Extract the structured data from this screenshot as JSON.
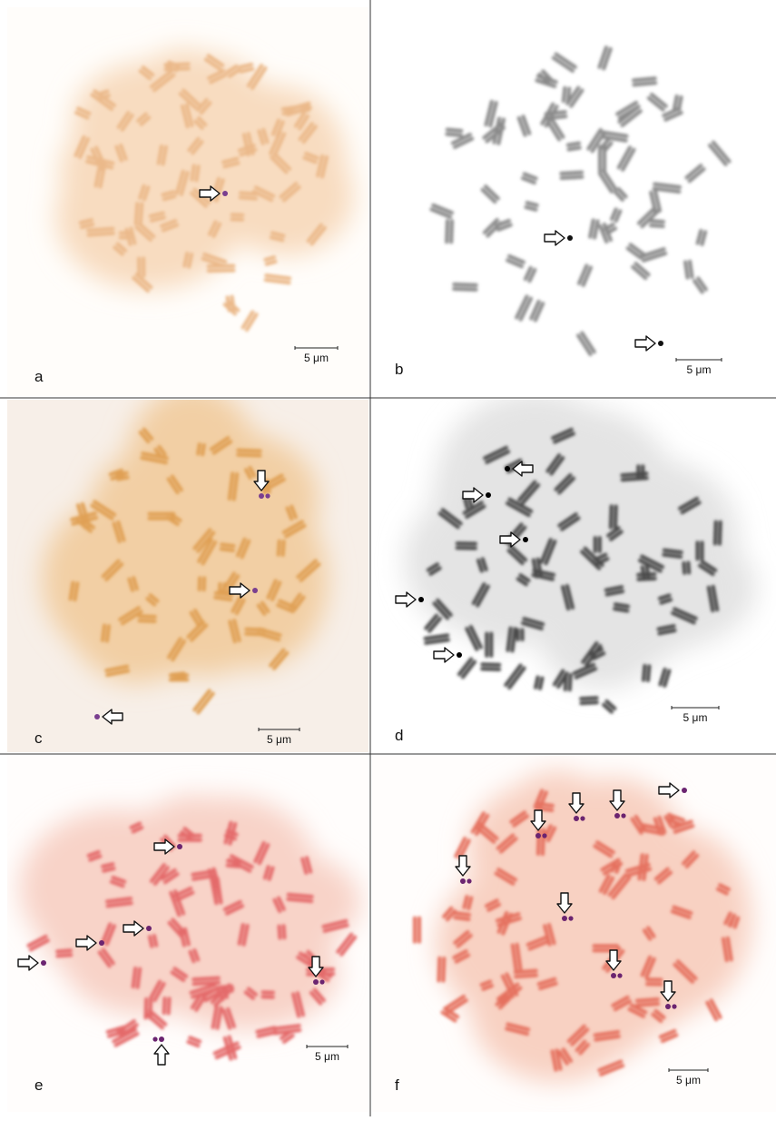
{
  "panels": [
    {
      "label": "a",
      "scale_bar": "5 μm"
    },
    {
      "label": "b",
      "scale_bar": "5 μm"
    },
    {
      "label": "c",
      "scale_bar": "5 μm"
    },
    {
      "label": "d",
      "scale_bar": "5 μm"
    },
    {
      "label": "e",
      "scale_bar": "5 μm"
    },
    {
      "label": "f",
      "scale_bar": "5 μm"
    }
  ]
}
